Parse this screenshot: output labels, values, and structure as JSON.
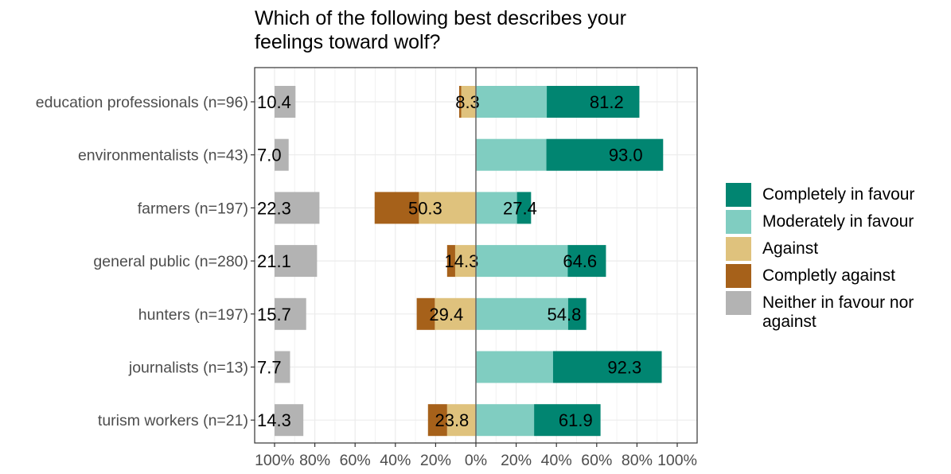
{
  "chart_data": {
    "type": "bar",
    "orientation": "horizontal",
    "stacking": "diverging",
    "title": "Which of the following best describes your feelings toward wolf?",
    "title_lines": [
      "Which of the following best describes your",
      "feelings toward wolf?"
    ],
    "xlabel": "",
    "ylabel": "",
    "xlim": [
      -100,
      100
    ],
    "x_ticks": [
      -100,
      -80,
      -60,
      -40,
      -20,
      0,
      20,
      40,
      60,
      80,
      100
    ],
    "x_tick_labels": [
      "100%",
      "80%",
      "60%",
      "40%",
      "20%",
      "0%",
      "20%",
      "40%",
      "60%",
      "80%",
      "100%"
    ],
    "neutral_offset": -100,
    "grid": true,
    "legend_position": "right",
    "categories": [
      "education professionals (n=96)",
      "environmentalists (n=43)",
      "farmers (n=197)",
      "general public (n=280)",
      "hunters (n=197)",
      "journalists (n=13)",
      "turism workers (n=21)"
    ],
    "series": [
      {
        "name": "Completely in favour",
        "color": "#018571",
        "side": "positive",
        "values": [
          46.0,
          58.0,
          7.0,
          19.0,
          9.0,
          54.0,
          33.0
        ]
      },
      {
        "name": "Moderately in favour",
        "color": "#80CDC1",
        "side": "positive",
        "values": [
          35.2,
          35.0,
          20.4,
          45.6,
          45.8,
          38.3,
          28.9
        ]
      },
      {
        "name": "Against",
        "color": "#DFC27D",
        "side": "negative",
        "values": [
          7.3,
          0,
          28.3,
          10.3,
          20.4,
          0,
          14.3
        ]
      },
      {
        "name": "Completly against",
        "color": "#A6611A",
        "side": "negative",
        "values": [
          1.0,
          0,
          22.0,
          4.0,
          9.0,
          0,
          9.5
        ]
      },
      {
        "name": "Neither in favour nor against",
        "color": "#B3B3B3",
        "side": "neutral",
        "values": [
          10.4,
          7.0,
          22.3,
          21.1,
          15.7,
          7.7,
          14.3
        ]
      }
    ],
    "data_labels": {
      "positive": [
        "81.2",
        "93.0",
        "27.4",
        "64.6",
        "54.8",
        "92.3",
        "61.9"
      ],
      "negative": [
        "8.3",
        "",
        "50.3",
        "14.3",
        "29.4",
        "",
        "23.8"
      ],
      "neutral": [
        "10.4",
        "7.0",
        "22.3",
        "21.1",
        "15.7",
        "7.7",
        "14.3"
      ]
    },
    "legend": [
      {
        "label": "Completely in favour",
        "color": "#018571"
      },
      {
        "label": "Moderately in favour",
        "color": "#80CDC1"
      },
      {
        "label": "Against",
        "color": "#DFC27D"
      },
      {
        "label": "Completly against",
        "color": "#A6611A"
      },
      {
        "label": "Neither in favour nor\nagainst",
        "color": "#B3B3B3"
      }
    ]
  }
}
